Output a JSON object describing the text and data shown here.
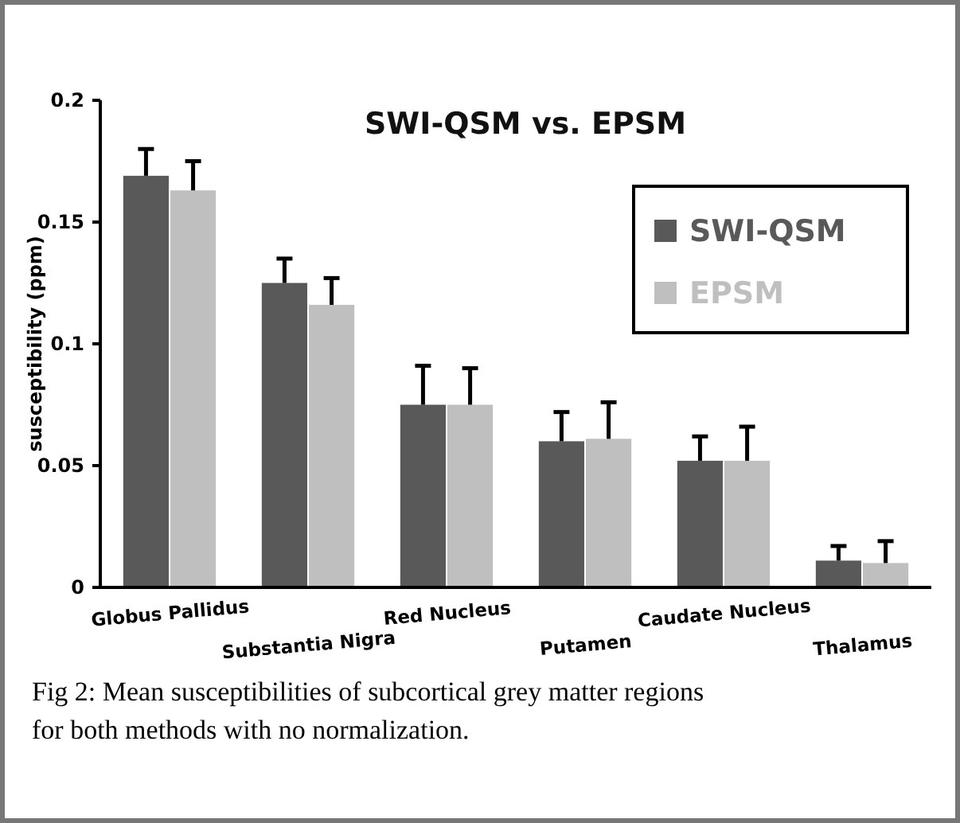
{
  "chart_data": {
    "type": "bar",
    "title": "SWI-QSM vs. EPSM",
    "ylabel": "susceptibility (ppm)",
    "categories": [
      "Globus Pallidus",
      "Substantia Nigra",
      "Red Nucleus",
      "Putamen",
      "Caudate Nucleus",
      "Thalamus"
    ],
    "series": [
      {
        "name": "SWI-QSM",
        "color": "#595959",
        "values": [
          0.169,
          0.125,
          0.075,
          0.06,
          0.052,
          0.011
        ],
        "errors": [
          [
            0.169,
            0.18
          ],
          [
            0.125,
            0.135
          ],
          [
            0.075,
            0.091
          ],
          [
            0.06,
            0.072
          ],
          [
            0.052,
            0.062
          ],
          [
            0.011,
            0.017
          ]
        ]
      },
      {
        "name": "EPSM",
        "color": "#bfbfbf",
        "values": [
          0.163,
          0.116,
          0.075,
          0.061,
          0.052,
          0.01
        ],
        "errors": [
          [
            0.163,
            0.175
          ],
          [
            0.116,
            0.127
          ],
          [
            0.075,
            0.09
          ],
          [
            0.061,
            0.076
          ],
          [
            0.052,
            0.066
          ],
          [
            0.01,
            0.019
          ]
        ]
      }
    ],
    "ylim": [
      0,
      0.2
    ],
    "yticks": [
      0,
      0.05,
      0.1,
      0.15,
      0.2
    ],
    "grid": false,
    "legend": "top right",
    "annotations": [
      "Fig 2: Mean susceptibilities of subcortical grey matter regions for both methods with no normalization."
    ]
  }
}
